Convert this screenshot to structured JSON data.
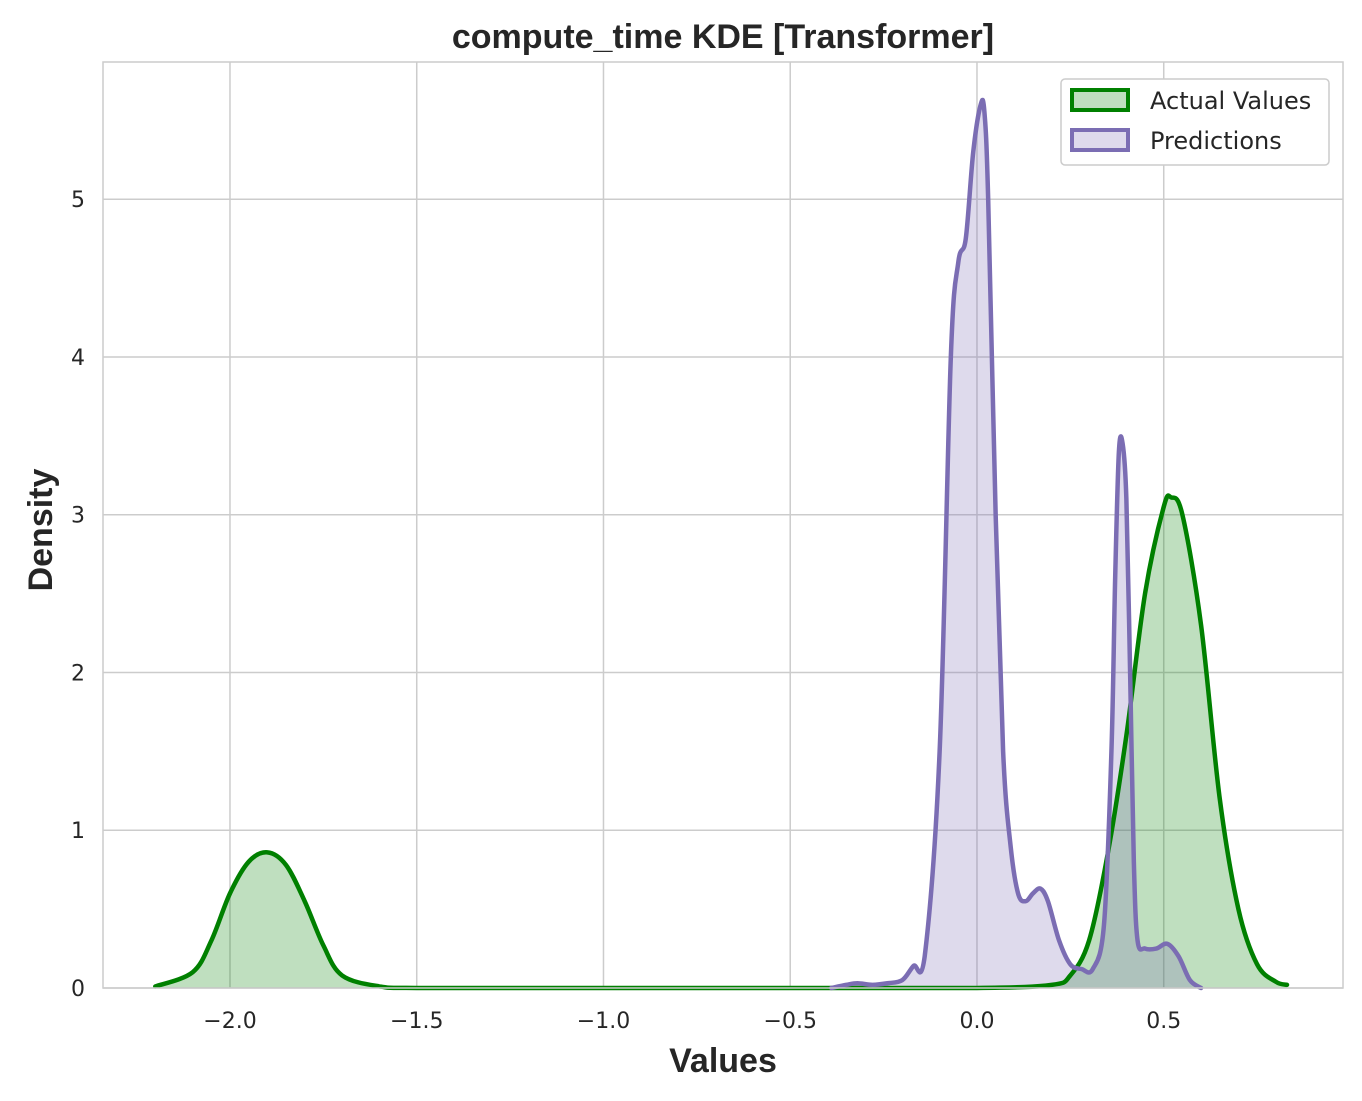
{
  "chart_data": {
    "type": "area",
    "title": "compute_time KDE [Transformer]",
    "xlabel": "Values",
    "ylabel": "Density",
    "xlim": [
      -2.34,
      0.98
    ],
    "ylim": [
      0,
      5.87
    ],
    "x_ticks": [
      -2.0,
      -1.5,
      -1.0,
      -0.5,
      0.0,
      0.5
    ],
    "x_tick_labels": [
      "−2.0",
      "−1.5",
      "−1.0",
      "−0.5",
      "0.0",
      "0.5"
    ],
    "y_ticks": [
      0,
      1,
      2,
      3,
      4,
      5
    ],
    "y_tick_labels": [
      "0",
      "1",
      "2",
      "3",
      "4",
      "5"
    ],
    "grid": true,
    "legend_position": "top-right",
    "series": [
      {
        "name": "Actual Values",
        "color": "#008000",
        "x": [
          -2.2,
          -2.1,
          -2.05,
          -2.0,
          -1.95,
          -1.9,
          -1.85,
          -1.8,
          -1.75,
          -1.7,
          -1.6,
          -1.5,
          -1.0,
          -0.5,
          0.0,
          0.2,
          0.25,
          0.3,
          0.35,
          0.4,
          0.45,
          0.5,
          0.52,
          0.55,
          0.6,
          0.65,
          0.7,
          0.75,
          0.8,
          0.83
        ],
        "values": [
          0.01,
          0.1,
          0.3,
          0.6,
          0.8,
          0.86,
          0.78,
          0.55,
          0.27,
          0.08,
          0.01,
          0.0,
          0.0,
          0.0,
          0.0,
          0.02,
          0.08,
          0.3,
          0.85,
          1.6,
          2.5,
          3.05,
          3.11,
          3.0,
          2.3,
          1.2,
          0.5,
          0.15,
          0.04,
          0.02
        ]
      },
      {
        "name": "Predictions",
        "color": "#7b6db3",
        "x": [
          -0.39,
          -0.35,
          -0.32,
          -0.28,
          -0.24,
          -0.2,
          -0.17,
          -0.14,
          -0.1,
          -0.07,
          -0.05,
          -0.03,
          -0.01,
          0.01,
          0.02,
          0.03,
          0.05,
          0.07,
          0.09,
          0.11,
          0.13,
          0.15,
          0.17,
          0.19,
          0.22,
          0.25,
          0.28,
          0.31,
          0.34,
          0.36,
          0.37,
          0.38,
          0.39,
          0.4,
          0.41,
          0.42,
          0.43,
          0.45,
          0.48,
          0.51,
          0.54,
          0.57,
          0.6
        ],
        "values": [
          0.0,
          0.02,
          0.03,
          0.02,
          0.03,
          0.05,
          0.14,
          0.2,
          1.5,
          4.0,
          4.6,
          4.75,
          5.3,
          5.6,
          5.55,
          5.0,
          3.0,
          1.5,
          0.9,
          0.6,
          0.55,
          0.6,
          0.63,
          0.55,
          0.3,
          0.15,
          0.12,
          0.12,
          0.4,
          1.5,
          2.6,
          3.4,
          3.45,
          3.1,
          2.0,
          0.8,
          0.3,
          0.25,
          0.25,
          0.28,
          0.2,
          0.05,
          0.0
        ]
      }
    ]
  }
}
